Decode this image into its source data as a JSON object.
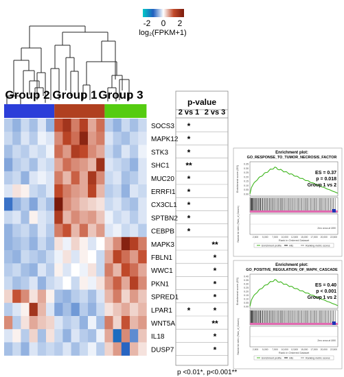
{
  "colorbar": {
    "tick_labels": [
      "-2",
      "0",
      "2"
    ],
    "label": "log₂(FPKM+1)",
    "colors": [
      "#00c8c8",
      "#1f5fbf",
      "#ffffff",
      "#c24a2a",
      "#7a1a0c"
    ]
  },
  "groups": [
    {
      "label": "Group 2",
      "color": "#2b3ed9"
    },
    {
      "label": "Group 1",
      "color": "#b04020"
    },
    {
      "label": "Group 3",
      "color": "#55cc11"
    }
  ],
  "genes": [
    "SOCS3",
    "MAPK12",
    "STK3",
    "SHC1",
    "MUC20",
    "ERRFI1",
    "CX3CL1",
    "SPTBN2",
    "CEBPB",
    "MAPK3",
    "FBLN1",
    "WWC1",
    "PKN1",
    "SPRED1",
    "LPAR1",
    "WNT5A",
    "IL18",
    "DUSP7"
  ],
  "heatmap_values": [
    [
      -0.4,
      -0.6,
      -0.3,
      -0.5,
      -0.2,
      -0.6,
      1.2,
      1.8,
      0.9,
      1.5,
      0.6,
      1.0,
      -0.4,
      -0.6,
      -0.3,
      -0.5,
      -0.3
    ],
    [
      -0.3,
      -0.5,
      -0.2,
      -0.4,
      -0.1,
      -0.2,
      0.8,
      1.4,
      1.0,
      2.2,
      0.7,
      0.9,
      -0.2,
      -0.4,
      -0.5,
      -0.3,
      -0.2
    ],
    [
      -0.5,
      -0.3,
      -0.4,
      -0.2,
      -0.3,
      -0.1,
      1.0,
      0.7,
      1.6,
      1.3,
      0.8,
      0.6,
      -0.3,
      -0.5,
      -0.2,
      -0.4,
      -0.1
    ],
    [
      -0.7,
      -0.4,
      -0.3,
      -0.5,
      -0.2,
      -0.3,
      0.6,
      1.0,
      0.8,
      0.7,
      0.5,
      1.9,
      -0.2,
      -0.3,
      -0.4,
      -0.6,
      -0.2
    ],
    [
      -0.4,
      -0.3,
      -0.6,
      -0.2,
      -0.1,
      -0.2,
      0.9,
      0.5,
      1.1,
      0.6,
      1.7,
      0.8,
      -0.3,
      -0.2,
      -0.5,
      -0.4,
      -0.2
    ],
    [
      -0.2,
      0.2,
      0.1,
      -0.3,
      -0.4,
      -0.2,
      1.3,
      0.9,
      0.7,
      0.6,
      1.4,
      0.5,
      -0.4,
      -0.3,
      -0.6,
      -0.2,
      -0.3
    ],
    [
      -1.1,
      -0.6,
      -0.4,
      -0.7,
      -0.3,
      -0.5,
      2.5,
      0.8,
      0.6,
      0.4,
      0.3,
      0.2,
      -0.3,
      -0.2,
      -0.4,
      -0.5,
      -0.2
    ],
    [
      -0.3,
      -0.2,
      -0.5,
      0.1,
      -0.2,
      -0.3,
      1.6,
      0.5,
      0.8,
      0.6,
      0.7,
      0.4,
      -0.1,
      -0.3,
      -0.2,
      -0.4,
      -0.2
    ],
    [
      -0.6,
      -0.4,
      -0.3,
      -0.5,
      -0.2,
      -0.4,
      0.9,
      1.2,
      0.5,
      1.0,
      0.4,
      0.7,
      -0.2,
      -0.1,
      -0.3,
      -0.2,
      -0.4
    ],
    [
      -0.6,
      -0.5,
      -0.4,
      -0.6,
      -0.3,
      -0.5,
      0.2,
      -0.1,
      0.3,
      0.1,
      -0.2,
      0.0,
      0.4,
      0.8,
      2.3,
      1.5,
      0.9
    ],
    [
      -0.5,
      -0.6,
      -0.3,
      -0.4,
      -0.5,
      -0.3,
      -0.1,
      0.2,
      -0.2,
      0.1,
      0.0,
      -0.3,
      0.6,
      1.4,
      1.0,
      0.7,
      1.2
    ],
    [
      -0.4,
      -0.3,
      -0.5,
      -0.6,
      -0.2,
      -0.4,
      0.1,
      -0.2,
      0.0,
      -0.1,
      0.2,
      -0.3,
      0.9,
      0.5,
      1.3,
      1.0,
      0.6
    ],
    [
      -0.3,
      -0.5,
      -0.4,
      -0.2,
      -0.6,
      -0.3,
      -0.2,
      0.0,
      -0.3,
      0.1,
      -0.1,
      0.2,
      0.7,
      1.1,
      0.6,
      1.5,
      0.8
    ],
    [
      0.3,
      1.2,
      0.8,
      0.2,
      0.6,
      0.1,
      -0.5,
      -0.6,
      -0.4,
      -0.3,
      -0.5,
      -0.2,
      0.5,
      0.9,
      0.3,
      0.7,
      0.4
    ],
    [
      -0.4,
      -0.2,
      0.1,
      1.8,
      0.5,
      -0.2,
      -0.7,
      -0.5,
      -0.8,
      -0.4,
      -0.6,
      -0.3,
      0.2,
      0.4,
      0.6,
      0.3,
      0.5
    ],
    [
      0.8,
      -0.4,
      0.2,
      0.6,
      0.4,
      0.3,
      -0.2,
      -0.4,
      -0.3,
      -0.6,
      -0.1,
      -0.5,
      0.9,
      0.3,
      1.2,
      0.5,
      0.7
    ],
    [
      -0.2,
      0.1,
      -0.4,
      0.3,
      -0.5,
      0.2,
      -0.3,
      -0.6,
      -0.2,
      -0.4,
      -0.5,
      -0.1,
      0.6,
      -1.4,
      0.8,
      -0.9,
      0.4
    ],
    [
      -0.5,
      -0.3,
      -0.6,
      -0.2,
      -0.4,
      -0.3,
      -0.4,
      -0.2,
      -0.5,
      -0.3,
      -0.1,
      -0.4,
      0.3,
      0.7,
      -1.2,
      0.5,
      0.2
    ]
  ],
  "pvalue_table": {
    "title": "p-value",
    "col_headers": [
      "2 vs 1",
      "2 vs 3"
    ],
    "rows": [
      [
        "*",
        ""
      ],
      [
        "*",
        ""
      ],
      [
        "*",
        ""
      ],
      [
        "**",
        ""
      ],
      [
        "*",
        ""
      ],
      [
        "*",
        ""
      ],
      [
        "*",
        ""
      ],
      [
        "*",
        ""
      ],
      [
        "*",
        ""
      ],
      [
        "",
        "**"
      ],
      [
        "",
        "*"
      ],
      [
        "",
        "*"
      ],
      [
        "",
        "*"
      ],
      [
        "",
        "*"
      ],
      [
        "*",
        "*"
      ],
      [
        "",
        "**"
      ],
      [
        "",
        "*"
      ],
      [
        "",
        "*"
      ]
    ],
    "footnote": "p <0.01*, p<0.001**"
  },
  "enrichment_plots": [
    {
      "heading": "Enrichment plot:",
      "term": "GO_RESPONSE_TO_TUMOR_NECROSIS_FACTOR",
      "es": "ES = 0.37",
      "p": "p = 0.018",
      "comparison": "Group 1 vs 2",
      "y_label": "Enrichment score (ES)",
      "x_label": "Rank in Ordered Dataset",
      "rank_label": "Ranked list metric (Ratio_of_Classes)",
      "legend": [
        "Enrichment profile",
        "Hits",
        "Ranking metric scores"
      ],
      "zero_note": "Zero cross at 1890",
      "x_ticks": [
        "2,500",
        "5,000",
        "7,500",
        "10,000",
        "12,500",
        "15,000",
        "17,500",
        "20,000",
        "22,500"
      ],
      "y_ticks": [
        "0.35",
        "0.30",
        "0.25",
        "0.20",
        "0.15",
        "0.10",
        "0.05",
        "0.00"
      ]
    },
    {
      "heading": "Enrichment plot:",
      "term": "GO_POSITIVE_REGULATION_OF_MAPK_CASCADE",
      "es": "ES = 0.40",
      "p": "p < 0.001",
      "comparison": "Group 1 vs 2",
      "y_label": "Enrichment score (ES)",
      "x_label": "Rank in Ordered Dataset",
      "rank_label": "Ranked list metric (Ratio_of_Classes)",
      "legend": [
        "Enrichment profile",
        "Hits",
        "Ranking metric scores"
      ],
      "zero_note": "Zero cross at 1890",
      "x_ticks": [
        "2,500",
        "5,000",
        "7,500",
        "10,000",
        "12,500",
        "15,000",
        "17,500",
        "20,000",
        "22,500"
      ],
      "y_ticks": [
        "0.40",
        "0.35",
        "0.30",
        "0.25",
        "0.20",
        "0.15",
        "0.10",
        "0.05",
        "0.00"
      ]
    }
  ]
}
